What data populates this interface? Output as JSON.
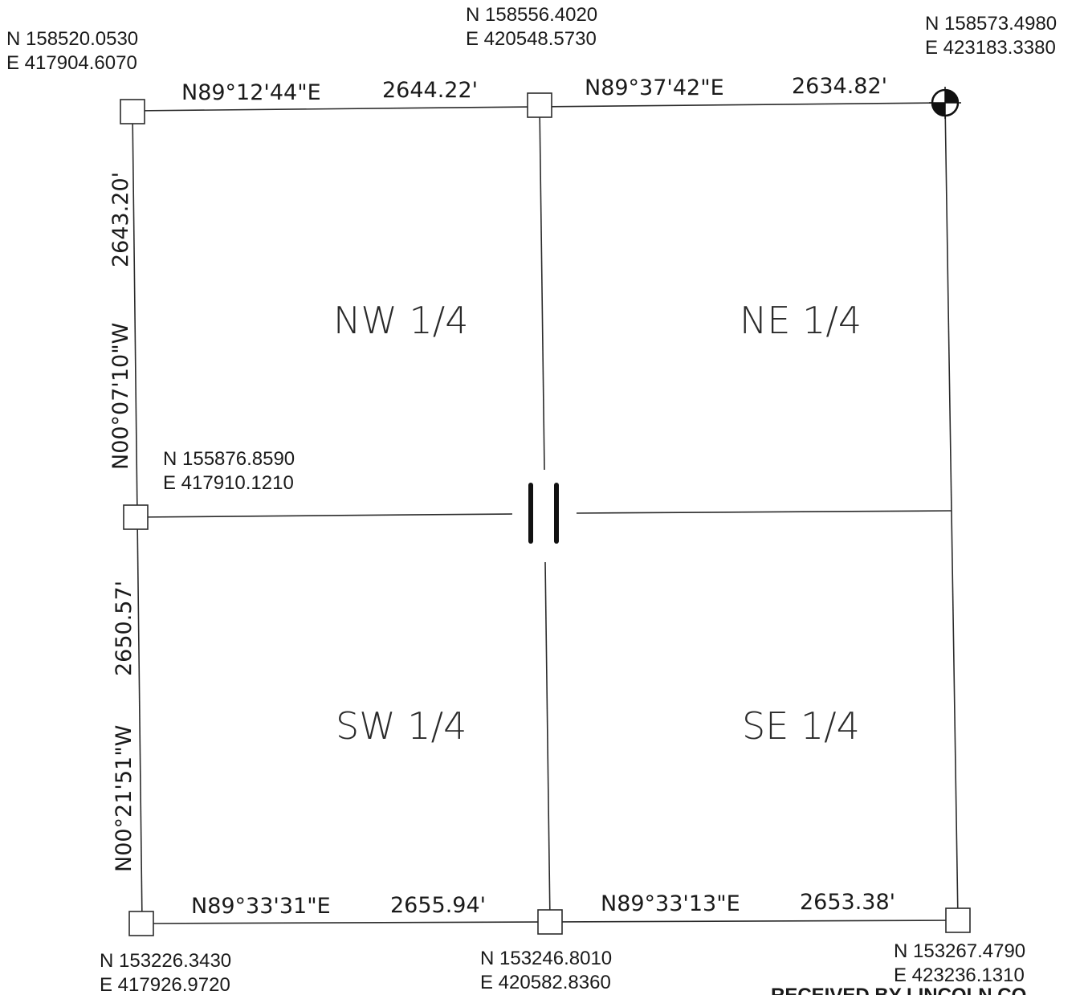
{
  "corners": {
    "nw": {
      "north": "N 158520.0530",
      "east": "E 417904.6070"
    },
    "n_quarter": {
      "north": "N 158556.4020",
      "east": "E 420548.5730"
    },
    "ne": {
      "north": "N 158573.4980",
      "east": "E 423183.3380"
    },
    "w_quarter": {
      "north": "N 155876.8590",
      "east": "E 417910.1210"
    },
    "sw": {
      "north": "N 153226.3430",
      "east": "E 417926.9720"
    },
    "s_quarter": {
      "north": "N 153246.8010",
      "east": "E 420582.8360"
    },
    "se": {
      "north": "N 153267.4790",
      "east": "E 423236.1310"
    }
  },
  "lines": {
    "north_west": {
      "bearing": "N89°12'44\"E",
      "distance": "2644.22'"
    },
    "north_east": {
      "bearing": "N89°37'42\"E",
      "distance": "2634.82'"
    },
    "west_north": {
      "bearing": "N00°07'10\"W",
      "distance": "2643.20'"
    },
    "west_south": {
      "bearing": "N00°21'51\"W",
      "distance": "2650.57'"
    },
    "south_west": {
      "bearing": "N89°33'31\"E",
      "distance": "2655.94'"
    },
    "south_east": {
      "bearing": "N89°33'13\"E",
      "distance": "2653.38'"
    }
  },
  "quarters": {
    "nw": "NW 1/4",
    "ne": "NE 1/4",
    "sw": "SW 1/4",
    "se": "SE 1/4"
  },
  "stamp": "RECEIVED BY LINCOLN CO",
  "icons": {
    "ne_corner": "survey-control-point-icon",
    "center": "section-center-marker-icon",
    "corners": "square-monument-icon"
  }
}
